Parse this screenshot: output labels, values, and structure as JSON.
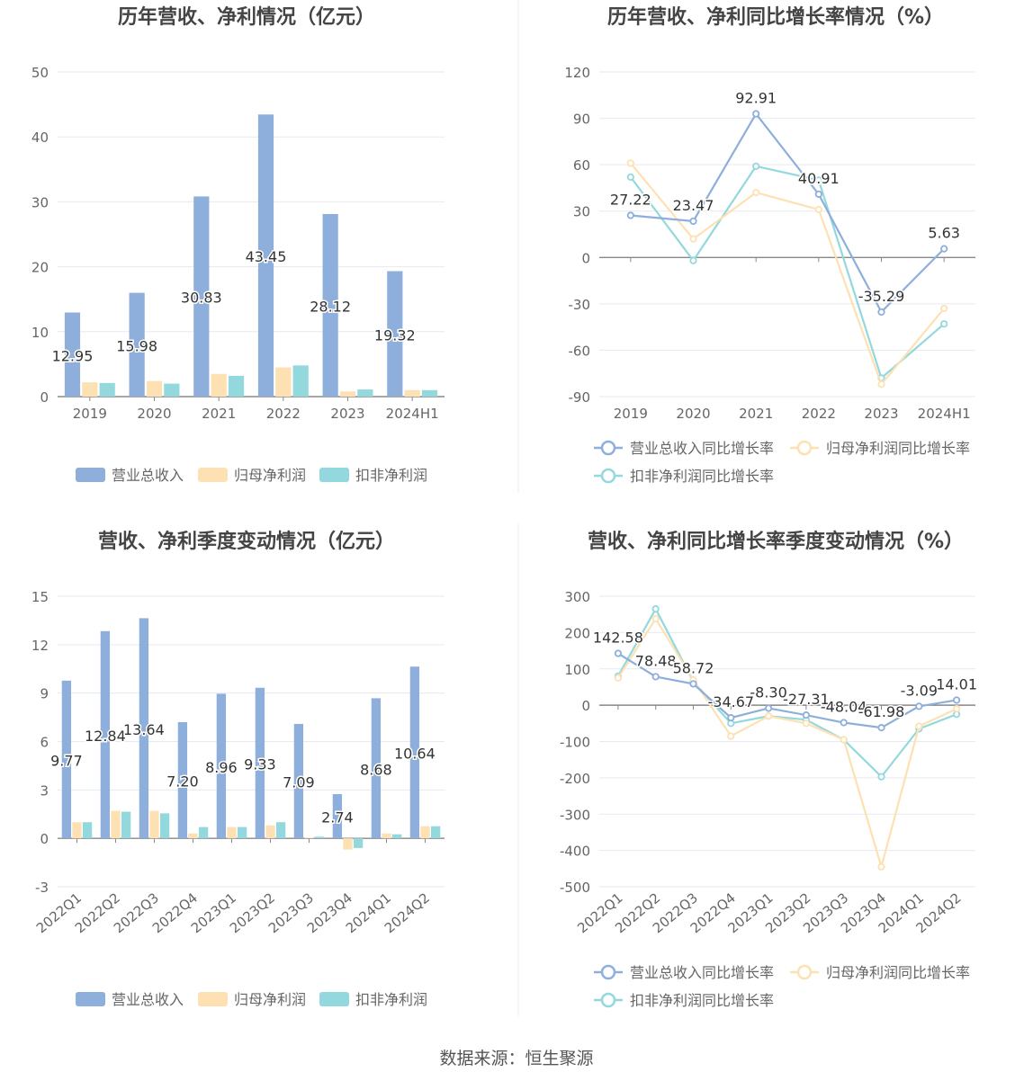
{
  "source_label": "数据来源：恒生聚源",
  "colors": {
    "revenue": "#8eaedc",
    "parent_profit": "#fde1b3",
    "deducted_profit": "#93d8dc",
    "axis": "#999999",
    "zero_line": "#888888",
    "grid": "#e6e9f0",
    "tick_text": "#666666",
    "title_text": "#444444",
    "label_text": "#333333"
  },
  "chart_data": [
    {
      "type": "bar",
      "title": "历年营收、净利情况（亿元）",
      "categories": [
        "2019",
        "2020",
        "2021",
        "2022",
        "2023",
        "2024H1"
      ],
      "ylim": [
        0,
        50
      ],
      "yticks": [
        0,
        10,
        20,
        30,
        40,
        50
      ],
      "grid": true,
      "legend_position": "bottom",
      "series": [
        {
          "name": "营业总收入",
          "values": [
            12.95,
            15.98,
            30.83,
            43.45,
            28.12,
            19.32
          ],
          "labels": [
            "12.95",
            "15.98",
            "30.83",
            "43.45",
            "28.12",
            "19.32"
          ]
        },
        {
          "name": "归母净利润",
          "values": [
            2.2,
            2.4,
            3.5,
            4.5,
            0.8,
            1.0
          ]
        },
        {
          "name": "扣非净利润",
          "values": [
            2.1,
            2.0,
            3.2,
            4.8,
            1.1,
            1.0
          ]
        }
      ]
    },
    {
      "type": "line",
      "title": "历年营收、净利同比增长率情况（%）",
      "categories": [
        "2019",
        "2020",
        "2021",
        "2022",
        "2023",
        "2024H1"
      ],
      "ylim": [
        -90,
        120
      ],
      "yticks": [
        -90,
        -60,
        -30,
        0,
        30,
        60,
        90,
        120
      ],
      "grid": true,
      "legend_position": "bottom",
      "series": [
        {
          "name": "营业总收入同比增长率",
          "values": [
            27.22,
            23.47,
            92.91,
            40.91,
            -35.29,
            5.63
          ],
          "labels": [
            "27.22",
            "23.47",
            "92.91",
            "40.91",
            "-35.29",
            "5.63"
          ]
        },
        {
          "name": "归母净利润同比增长率",
          "values": [
            61,
            12,
            42,
            31,
            -82,
            -33
          ]
        },
        {
          "name": "扣非净利润同比增长率",
          "values": [
            52,
            -2,
            59,
            50,
            -78,
            -43
          ]
        }
      ]
    },
    {
      "type": "bar",
      "title": "营收、净利季度变动情况（亿元）",
      "categories": [
        "2022Q1",
        "2022Q2",
        "2022Q3",
        "2022Q4",
        "2023Q1",
        "2023Q2",
        "2023Q3",
        "2023Q4",
        "2024Q1",
        "2024Q2"
      ],
      "ylim": [
        -3,
        15
      ],
      "yticks": [
        -3,
        0,
        3,
        6,
        9,
        12,
        15
      ],
      "grid": true,
      "legend_position": "bottom",
      "series": [
        {
          "name": "营业总收入",
          "values": [
            9.77,
            12.84,
            13.64,
            7.2,
            8.96,
            9.33,
            7.09,
            2.74,
            8.68,
            10.64
          ],
          "labels": [
            "9.77",
            "12.84",
            "13.64",
            "7.20",
            "8.96",
            "9.33",
            "7.09",
            "2.74",
            "8.68",
            "10.64"
          ]
        },
        {
          "name": "归母净利润",
          "values": [
            1.0,
            1.7,
            1.7,
            0.3,
            0.7,
            0.8,
            0.05,
            -0.7,
            0.3,
            0.75
          ]
        },
        {
          "name": "扣非净利润",
          "values": [
            1.0,
            1.65,
            1.55,
            0.7,
            0.7,
            1.0,
            0.1,
            -0.6,
            0.25,
            0.75
          ]
        }
      ]
    },
    {
      "type": "line",
      "title": "营收、净利同比增长率季度变动情况（%）",
      "categories": [
        "2022Q1",
        "2022Q2",
        "2022Q3",
        "2022Q4",
        "2023Q1",
        "2023Q2",
        "2023Q3",
        "2023Q4",
        "2024Q1",
        "2024Q2"
      ],
      "ylim": [
        -500,
        300
      ],
      "yticks": [
        -500,
        -400,
        -300,
        -200,
        -100,
        0,
        100,
        200,
        300
      ],
      "grid": true,
      "legend_position": "bottom",
      "series": [
        {
          "name": "营业总收入同比增长率",
          "values": [
            142.58,
            78.48,
            58.72,
            -34.67,
            -8.3,
            -27.31,
            -48.04,
            -61.98,
            -3.09,
            14.01
          ],
          "labels": [
            "142.58",
            "78.48",
            "58.72",
            "-34.67",
            "-8.30",
            "-27.31",
            "-48.04",
            "-61.98",
            "-3.09",
            "14.01"
          ]
        },
        {
          "name": "归母净利润同比增长率",
          "values": [
            75,
            238,
            70,
            -85,
            -30,
            -50,
            -95,
            -445,
            -58,
            -10
          ]
        },
        {
          "name": "扣非净利润同比增长率",
          "values": [
            80,
            265,
            65,
            -50,
            -30,
            -40,
            -95,
            -197,
            -65,
            -25
          ]
        }
      ]
    }
  ]
}
